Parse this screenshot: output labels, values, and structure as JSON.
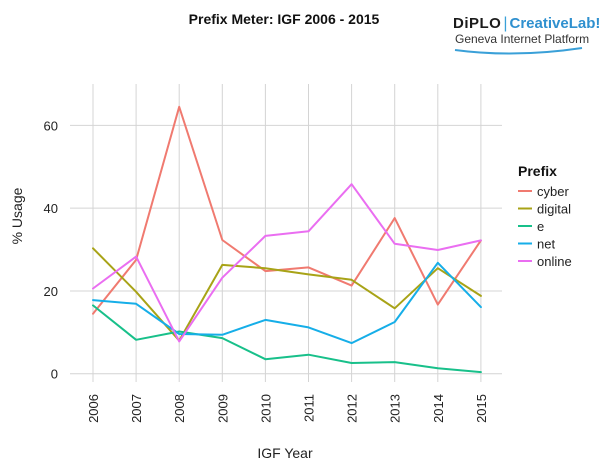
{
  "logo": {
    "diplo": "DiPLO",
    "separator": "|",
    "creativelab": "CreativeLab!",
    "subtitle": "Geneva Internet Platform",
    "accent_color": "#3aa0d8"
  },
  "chart_data": {
    "type": "line",
    "title": "Prefix Meter: IGF 2006 - 2015",
    "xlabel": "IGF Year",
    "ylabel": "% Usage",
    "categories": [
      "2006",
      "2007",
      "2008",
      "2009",
      "2010",
      "2011",
      "2012",
      "2013",
      "2014",
      "2015"
    ],
    "ylim": [
      -2,
      70
    ],
    "yticks": [
      "0",
      "20",
      "40",
      "60"
    ],
    "grid": true,
    "legend": {
      "title": "Prefix",
      "position": "right"
    },
    "series": [
      {
        "name": "cyber",
        "color": "#f07a70",
        "values": [
          14.5,
          27.5,
          64.5,
          32.3,
          24.8,
          25.7,
          21.3,
          37.6,
          16.7,
          32.2
        ]
      },
      {
        "name": "digital",
        "color": "#a8a317",
        "values": [
          30.3,
          19.8,
          8.0,
          26.3,
          25.5,
          24.0,
          22.7,
          15.8,
          25.5,
          18.8
        ]
      },
      {
        "name": "e",
        "color": "#18c08a",
        "values": [
          16.5,
          8.2,
          10.2,
          8.6,
          3.5,
          4.6,
          2.6,
          2.8,
          1.3,
          0.4
        ]
      },
      {
        "name": "net",
        "color": "#16aee8",
        "values": [
          17.8,
          16.9,
          9.6,
          9.4,
          13.0,
          11.2,
          7.4,
          12.5,
          26.8,
          16.1
        ]
      },
      {
        "name": "online",
        "color": "#ea6ef1",
        "values": [
          20.6,
          28.3,
          7.8,
          23.2,
          33.3,
          34.4,
          45.8,
          31.4,
          29.9,
          32.2
        ]
      }
    ]
  }
}
